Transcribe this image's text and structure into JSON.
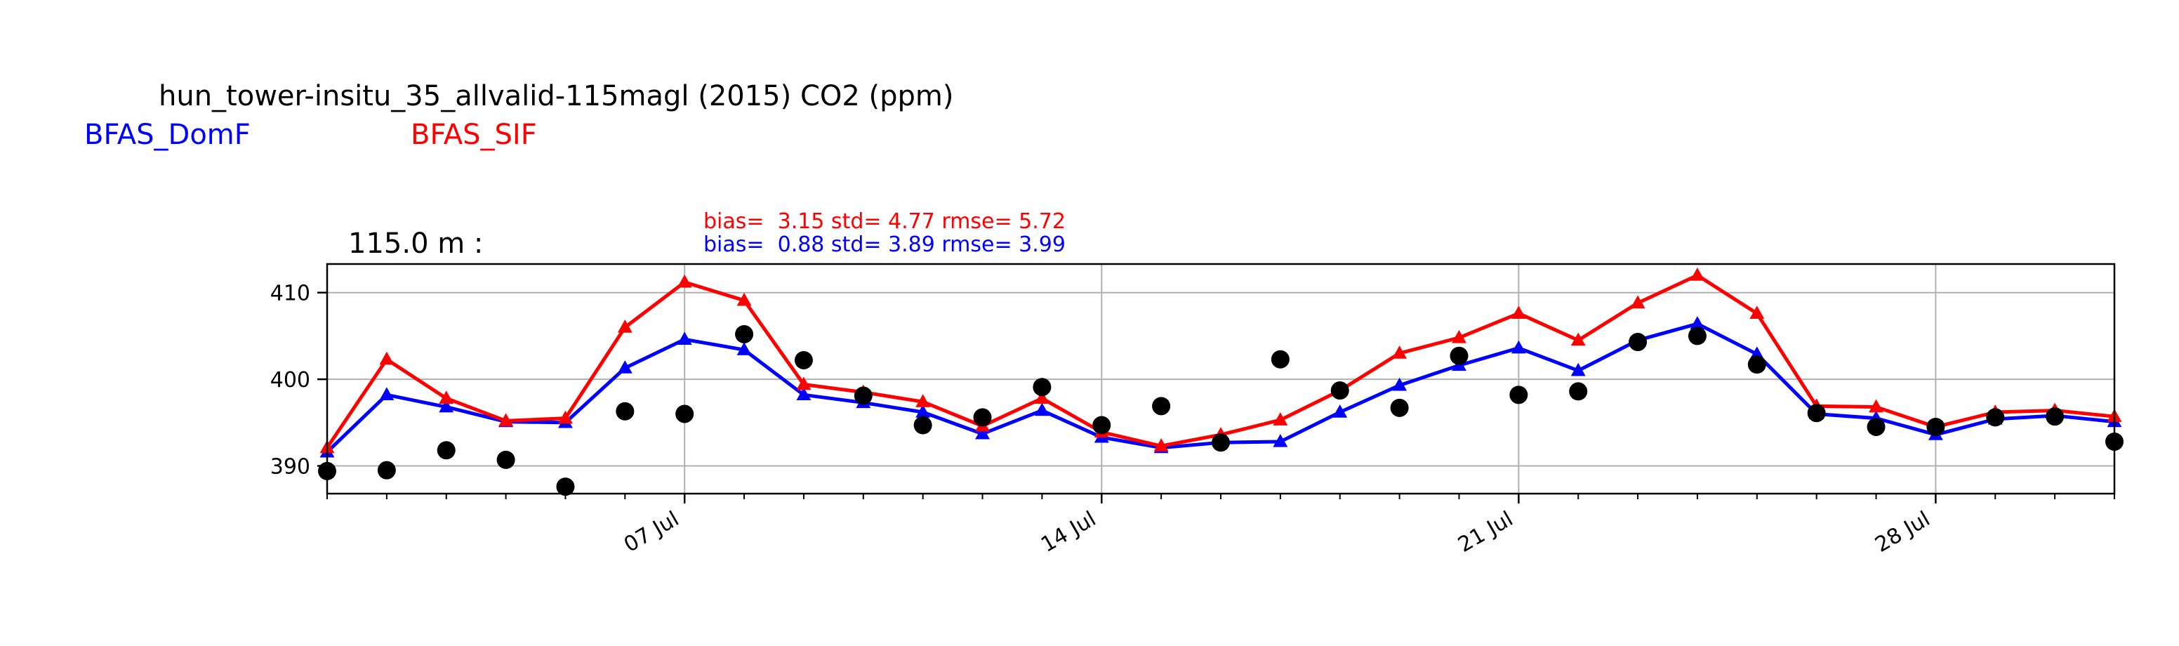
{
  "colors": {
    "obs": "#000000",
    "domf": "#0000ff",
    "sif": "#ff0000",
    "grid": "#b0b0b0",
    "axis": "#000000"
  },
  "header": {
    "title": "hun_tower-insitu_35_allvalid-115magl (2015) CO2 (ppm)",
    "legend_domf": "BFAS_DomF",
    "legend_sif": "BFAS_SIF"
  },
  "panel": {
    "height_label": "115.0 m :",
    "stats_sif": "bias=  3.15 std= 4.77 rmse= 5.72",
    "stats_domf": "bias=  0.88 std= 3.89 rmse= 3.99"
  },
  "chart_data": {
    "type": "line",
    "title": "hun_tower-insitu_35_allvalid-115magl (2015) CO2 (ppm)",
    "xlabel": "",
    "ylabel": "",
    "x_unit": "date (2015)",
    "x": [
      "2015-07-01",
      "2015-07-02",
      "2015-07-03",
      "2015-07-04",
      "2015-07-05",
      "2015-07-06",
      "2015-07-07",
      "2015-07-08",
      "2015-07-09",
      "2015-07-10",
      "2015-07-11",
      "2015-07-12",
      "2015-07-13",
      "2015-07-14",
      "2015-07-15",
      "2015-07-16",
      "2015-07-17",
      "2015-07-18",
      "2015-07-19",
      "2015-07-20",
      "2015-07-21",
      "2015-07-22",
      "2015-07-23",
      "2015-07-24",
      "2015-07-25",
      "2015-07-26",
      "2015-07-27",
      "2015-07-28",
      "2015-07-29",
      "2015-07-30",
      "2015-07-31"
    ],
    "xlim": [
      "2015-07-01",
      "2015-07-31"
    ],
    "ylim": [
      386.8,
      413.3
    ],
    "y_ticks": [
      390,
      400,
      410
    ],
    "x_ticks": [
      {
        "date": "2015-07-07",
        "label": "07 Jul"
      },
      {
        "date": "2015-07-14",
        "label": "14 Jul"
      },
      {
        "date": "2015-07-21",
        "label": "21 Jul"
      },
      {
        "date": "2015-07-28",
        "label": "28 Jul"
      }
    ],
    "grid": true,
    "series": [
      {
        "name": "BFAS_DomF",
        "color": "#0000ff",
        "marker": "triangle",
        "values": [
          391.6,
          398.2,
          396.8,
          395.1,
          395.0,
          401.3,
          404.6,
          403.4,
          398.2,
          397.3,
          396.2,
          393.7,
          396.4,
          393.3,
          392.1,
          392.7,
          392.8,
          396.2,
          399.3,
          401.6,
          403.6,
          401.0,
          404.5,
          406.4,
          402.9,
          396.0,
          395.5,
          393.6,
          395.4,
          395.8,
          395.1
        ]
      },
      {
        "name": "BFAS_SIF",
        "color": "#ff0000",
        "marker": "triangle",
        "values": [
          392.1,
          402.3,
          397.8,
          395.2,
          395.5,
          406.0,
          411.2,
          409.1,
          399.4,
          398.5,
          397.4,
          394.6,
          397.8,
          393.9,
          392.3,
          393.6,
          395.3,
          398.7,
          403.0,
          404.8,
          407.6,
          404.5,
          408.8,
          412.0,
          407.6,
          396.9,
          396.8,
          394.5,
          396.2,
          396.4,
          395.7
        ]
      },
      {
        "name": "",
        "color": "#000000",
        "marker": "circle",
        "values": [
          389.4,
          389.5,
          391.8,
          390.7,
          387.6,
          396.3,
          396.0,
          405.2,
          402.2,
          398.1,
          394.7,
          395.6,
          399.1,
          394.7,
          396.9,
          392.7,
          402.3,
          398.7,
          396.7,
          402.7,
          398.2,
          398.6,
          404.3,
          405.0,
          401.7,
          396.1,
          394.5,
          394.5,
          395.6,
          395.7,
          392.8
        ]
      }
    ]
  }
}
